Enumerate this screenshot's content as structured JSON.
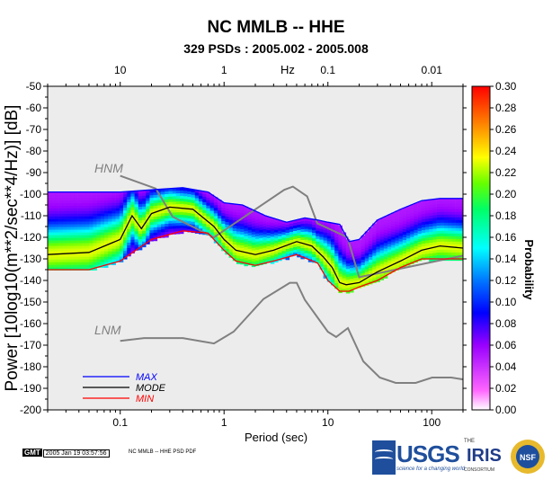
{
  "chart_data": {
    "type": "heatmap",
    "title": "NC MMLB -- HHE",
    "subtitle": "329 PSDs : 2005.002 - 2005.008",
    "xlabel": "Period (sec)",
    "ylabel": "Power [10log10(m**2/sec**4/Hz)] [dB]",
    "top_axis_label": "Hz",
    "x_scale": "log",
    "xlim": [
      0.02,
      200
    ],
    "ylim": [
      -200,
      -50
    ],
    "x_ticks": [
      0.1,
      1,
      10,
      100
    ],
    "x_tick_labels": [
      "0.1",
      "1",
      "10",
      "100"
    ],
    "top_ticks": [
      0.1,
      1,
      10,
      100
    ],
    "top_tick_labels": [
      "10",
      "1",
      "0.1",
      "0.01"
    ],
    "y_ticks": [
      -50,
      -60,
      -70,
      -80,
      -90,
      -100,
      -110,
      -120,
      -130,
      -140,
      -150,
      -160,
      -170,
      -180,
      -190,
      -200
    ],
    "colorbar": {
      "label": "Probability",
      "range": [
        0,
        0.3
      ],
      "ticks": [
        "0.00",
        "0.02",
        "0.04",
        "0.06",
        "0.08",
        "0.10",
        "0.12",
        "0.14",
        "0.16",
        "0.18",
        "0.20",
        "0.22",
        "0.24",
        "0.26",
        "0.28",
        "0.30"
      ]
    },
    "series": [
      {
        "name": "MAX",
        "color": "#0000ff",
        "x": [
          0.02,
          0.05,
          0.1,
          0.2,
          0.4,
          0.7,
          1,
          1.5,
          2.5,
          4,
          6,
          8,
          10,
          13,
          16,
          20,
          30,
          50,
          80,
          120,
          200
        ],
        "y": [
          -99,
          -99,
          -99,
          -98,
          -97,
          -99,
          -104,
          -105,
          -110,
          -113,
          -111,
          -112,
          -113,
          -114,
          -122,
          -121,
          -112,
          -107,
          -103,
          -102,
          -102
        ]
      },
      {
        "name": "MODE",
        "color": "#000000",
        "x": [
          0.02,
          0.05,
          0.1,
          0.13,
          0.16,
          0.2,
          0.3,
          0.5,
          0.8,
          1,
          1.3,
          2,
          3,
          5,
          7,
          9,
          11,
          13,
          15,
          20,
          30,
          50,
          80,
          120,
          200
        ],
        "y": [
          -128,
          -127,
          -121,
          -110,
          -116,
          -109,
          -106,
          -107,
          -115,
          -121,
          -126,
          -128,
          -126,
          -122,
          -124,
          -129,
          -134,
          -141,
          -142,
          -141,
          -136,
          -131,
          -126,
          -124,
          -125
        ]
      },
      {
        "name": "MIN",
        "color": "#ff0000",
        "x": [
          0.02,
          0.05,
          0.1,
          0.2,
          0.4,
          0.7,
          1,
          1.3,
          2,
          3,
          5,
          8,
          10,
          13,
          16,
          20,
          30,
          50,
          80,
          120,
          200
        ],
        "y": [
          -135,
          -135,
          -131,
          -121,
          -117,
          -118,
          -126,
          -131,
          -133,
          -131,
          -128,
          -132,
          -140,
          -145,
          -145,
          -143,
          -140,
          -134,
          -130,
          -130,
          -130
        ]
      },
      {
        "name": "HNM",
        "color": "#808080",
        "x": [
          0.1,
          0.22,
          0.32,
          0.8,
          3.8,
          4.6,
          6.3,
          7.9,
          15.4,
          20,
          354.8
        ],
        "y": [
          -91.5,
          -97.4,
          -110.5,
          -120,
          -98,
          -96.5,
          -101,
          -113.5,
          -120,
          -138.5,
          -126
        ]
      },
      {
        "name": "LNM",
        "color": "#808080",
        "x": [
          0.1,
          0.17,
          0.4,
          0.8,
          1.24,
          2.4,
          4.3,
          5,
          6,
          10,
          12,
          15.6,
          21.9,
          31.6,
          45,
          70,
          101,
          154,
          328
        ],
        "y": [
          -168,
          -166.7,
          -166.7,
          -169.2,
          -163.7,
          -148.6,
          -141.1,
          -141.1,
          -149,
          -163.8,
          -166.2,
          -162.1,
          -177.5,
          -185,
          -187.5,
          -187.5,
          -185,
          -185,
          -187.5
        ]
      }
    ],
    "labels": {
      "hnm": "HNM",
      "lnm": "LNM"
    },
    "legend": {
      "position": "bottom-left",
      "entries": [
        "MAX",
        "MODE",
        "MIN"
      ]
    }
  },
  "footer": {
    "gmt_badge": "GMT",
    "timestamp": "2005 Jan 19 03:57:56",
    "caption": "NC MMLB -- HHE PSD PDF"
  },
  "logos": {
    "usgs": "USGS",
    "usgs_tagline": "science for a changing world",
    "iris_the": "THE",
    "iris": "IRIS",
    "iris_consortium": "CONSORTIUM",
    "nsf": "NSF"
  }
}
